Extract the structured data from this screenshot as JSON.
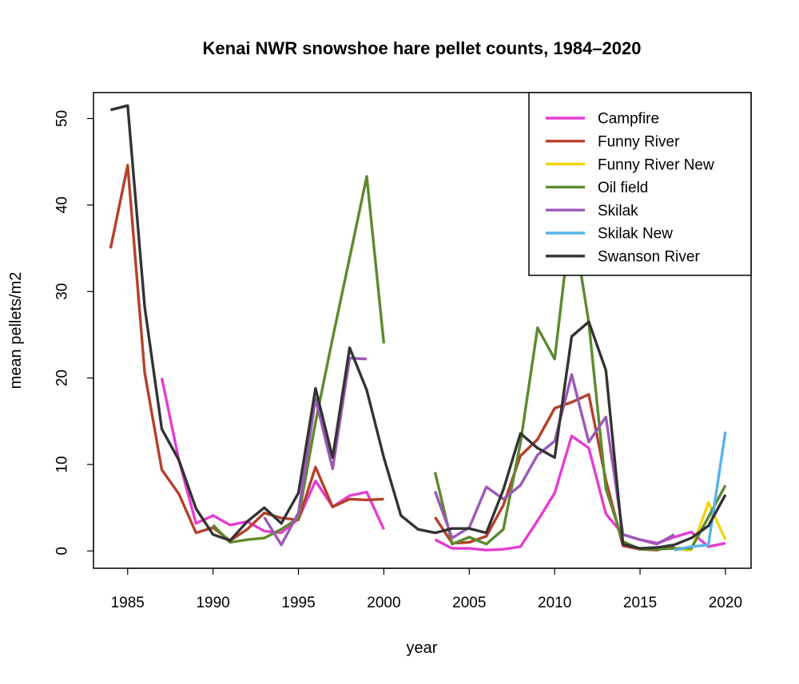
{
  "chart_data": {
    "type": "line",
    "title": "Kenai NWR snowshoe hare pellet counts, 1984–2020",
    "xlabel": "year",
    "ylabel": "mean pellets/m2",
    "xlim": [
      1983,
      2021.5
    ],
    "ylim": [
      -2,
      53
    ],
    "xticks": [
      1985,
      1990,
      1995,
      2000,
      2005,
      2010,
      2015,
      2020
    ],
    "yticks": [
      0,
      10,
      20,
      30,
      40,
      50
    ],
    "grid": false,
    "legend_position": "top-right",
    "series": [
      {
        "name": "Campfire",
        "color": "#E63CD2",
        "points": [
          [
            1987,
            20
          ],
          [
            1988,
            10.5
          ],
          [
            1989,
            3.2
          ],
          [
            1990,
            4.1
          ],
          [
            1991,
            3.0
          ],
          [
            1992,
            3.4
          ],
          [
            1993,
            2.3
          ],
          [
            1994,
            2.1
          ],
          [
            1995,
            3.7
          ],
          [
            1996,
            8.1
          ],
          [
            1997,
            5.1
          ],
          [
            1998,
            6.4
          ],
          [
            1999,
            6.8
          ],
          [
            2000,
            2.5
          ],
          [
            2001,
            null
          ],
          [
            2002,
            null
          ],
          [
            2003,
            1.3
          ],
          [
            2004,
            0.3
          ],
          [
            2005,
            0.3
          ],
          [
            2006,
            0.1
          ],
          [
            2007,
            0.2
          ],
          [
            2008,
            0.5
          ],
          [
            2009,
            3.5
          ],
          [
            2010,
            6.7
          ],
          [
            2011,
            13.3
          ],
          [
            2012,
            11.9
          ],
          [
            2013,
            4.3
          ],
          [
            2014,
            1.9
          ],
          [
            2015,
            1.3
          ],
          [
            2016,
            0.9
          ],
          [
            2017,
            1.6
          ],
          [
            2018,
            2.2
          ],
          [
            2019,
            0.5
          ],
          [
            2020,
            0.9
          ]
        ]
      },
      {
        "name": "Funny River",
        "color": "#B5402A",
        "points": [
          [
            1984,
            35
          ],
          [
            1985,
            44.6
          ],
          [
            1986,
            20.6
          ],
          [
            1987,
            9.4
          ],
          [
            1988,
            6.6
          ],
          [
            1989,
            2.1
          ],
          [
            1990,
            2.7
          ],
          [
            1991,
            1.2
          ],
          [
            1992,
            2.5
          ],
          [
            1993,
            4.4
          ],
          [
            1994,
            3.8
          ],
          [
            1995,
            3.6
          ],
          [
            1996,
            9.7
          ],
          [
            1997,
            5.1
          ],
          [
            1998,
            6.0
          ],
          [
            1999,
            5.9
          ],
          [
            2000,
            6.0
          ],
          [
            2001,
            null
          ],
          [
            2002,
            null
          ],
          [
            2003,
            3.9
          ],
          [
            2004,
            0.9
          ],
          [
            2005,
            1.0
          ],
          [
            2006,
            1.7
          ],
          [
            2007,
            5.3
          ],
          [
            2008,
            11.0
          ],
          [
            2009,
            12.9
          ],
          [
            2010,
            16.5
          ],
          [
            2011,
            17.2
          ],
          [
            2012,
            18.1
          ],
          [
            2013,
            8.2
          ],
          [
            2014,
            0.6
          ],
          [
            2015,
            0.2
          ],
          [
            2016,
            0.1
          ],
          [
            2017,
            0.6
          ]
        ]
      },
      {
        "name": "Funny River New",
        "color": "#F2D50E",
        "points": [
          [
            2017,
            0.2
          ],
          [
            2018,
            0.1
          ],
          [
            2019,
            5.6
          ],
          [
            2020,
            1.3
          ]
        ]
      },
      {
        "name": "Oil field",
        "color": "#5C8A2E",
        "points": [
          [
            1990,
            3.0
          ],
          [
            1991,
            1.0
          ],
          [
            1992,
            1.3
          ],
          [
            1993,
            1.5
          ],
          [
            1994,
            2.5
          ],
          [
            1995,
            3.8
          ],
          [
            1996,
            14.9
          ],
          [
            1997,
            24.6
          ],
          [
            1998,
            33.9
          ],
          [
            1999,
            43.3
          ],
          [
            2000,
            24.0
          ],
          [
            2001,
            null
          ],
          [
            2002,
            null
          ],
          [
            2003,
            9.1
          ],
          [
            2004,
            0.8
          ],
          [
            2005,
            1.6
          ],
          [
            2006,
            0.8
          ],
          [
            2007,
            2.5
          ],
          [
            2008,
            12.5
          ],
          [
            2009,
            25.8
          ],
          [
            2010,
            22.2
          ],
          [
            2011,
            38.9
          ],
          [
            2012,
            26.4
          ],
          [
            2013,
            7.2
          ],
          [
            2014,
            1.1
          ],
          [
            2015,
            0.2
          ],
          [
            2016,
            0.2
          ],
          [
            2017,
            0.3
          ],
          [
            2018,
            0.3
          ],
          [
            2019,
            3.9
          ],
          [
            2020,
            7.6
          ]
        ]
      },
      {
        "name": "Skilak",
        "color": "#9B59B6",
        "points": [
          [
            1993,
            3.9
          ],
          [
            1994,
            0.7
          ],
          [
            1995,
            4.4
          ],
          [
            1996,
            17.6
          ],
          [
            1997,
            9.5
          ],
          [
            1998,
            22.3
          ],
          [
            1999,
            22.2
          ],
          [
            2000,
            null
          ],
          [
            2001,
            null
          ],
          [
            2002,
            null
          ],
          [
            2003,
            6.9
          ],
          [
            2004,
            1.5
          ],
          [
            2005,
            2.7
          ],
          [
            2006,
            7.4
          ],
          [
            2007,
            6.0
          ],
          [
            2008,
            7.6
          ],
          [
            2009,
            11.1
          ],
          [
            2010,
            12.7
          ],
          [
            2011,
            20.4
          ],
          [
            2012,
            12.6
          ],
          [
            2013,
            15.5
          ],
          [
            2014,
            1.9
          ],
          [
            2015,
            1.3
          ],
          [
            2016,
            0.8
          ],
          [
            2017,
            1.9
          ]
        ]
      },
      {
        "name": "Skilak New",
        "color": "#56B4E9",
        "points": [
          [
            2017,
            0.1
          ],
          [
            2018,
            0.5
          ],
          [
            2019,
            0.7
          ],
          [
            2020,
            13.8
          ]
        ]
      },
      {
        "name": "Swanson River",
        "color": "#333333",
        "points": [
          [
            1984,
            51
          ],
          [
            1985,
            51.5
          ],
          [
            1986,
            28.2
          ],
          [
            1987,
            14.1
          ],
          [
            1988,
            10.5
          ],
          [
            1989,
            4.9
          ],
          [
            1990,
            1.9
          ],
          [
            1991,
            1.2
          ],
          [
            1992,
            3.4
          ],
          [
            1993,
            5.0
          ],
          [
            1994,
            3.2
          ],
          [
            1995,
            6.7
          ],
          [
            1996,
            18.8
          ],
          [
            1997,
            10.8
          ],
          [
            1998,
            23.5
          ],
          [
            1999,
            18.6
          ],
          [
            2000,
            10.8
          ],
          [
            2001,
            4.1
          ],
          [
            2002,
            2.5
          ],
          [
            2003,
            2.1
          ],
          [
            2004,
            2.6
          ],
          [
            2005,
            2.6
          ],
          [
            2006,
            2.1
          ],
          [
            2007,
            7.1
          ],
          [
            2008,
            13.6
          ],
          [
            2009,
            11.9
          ],
          [
            2010,
            10.8
          ],
          [
            2011,
            24.8
          ],
          [
            2012,
            26.5
          ],
          [
            2013,
            20.9
          ],
          [
            2014,
            0.8
          ],
          [
            2015,
            0.3
          ],
          [
            2016,
            0.4
          ],
          [
            2017,
            0.7
          ],
          [
            2018,
            1.5
          ],
          [
            2019,
            2.9
          ],
          [
            2020,
            6.5
          ]
        ]
      }
    ]
  }
}
